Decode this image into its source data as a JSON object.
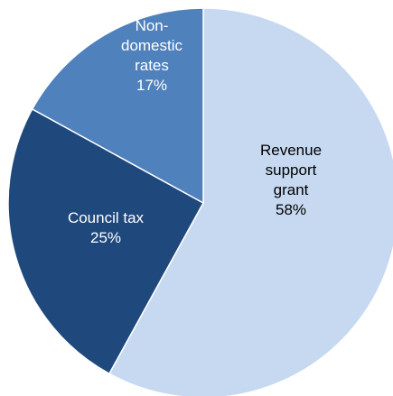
{
  "chart_data": {
    "type": "pie",
    "title": "",
    "slices": [
      {
        "lines": [
          "Revenue",
          "support",
          "grant"
        ],
        "value": 58,
        "value_label": "58%",
        "color": "#c6d9f1",
        "text_color": "#000000"
      },
      {
        "lines": [
          "Council tax"
        ],
        "value": 25,
        "value_label": "25%",
        "color": "#1f497d",
        "text_color": "#ffffff"
      },
      {
        "lines": [
          "Non-",
          "domestic",
          "rates"
        ],
        "value": 17,
        "value_label": "17%",
        "color": "#4f81bd",
        "text_color": "#ffffff"
      }
    ],
    "start_angle": "12 o'clock",
    "direction": "clockwise",
    "legend": "none",
    "border_color": "#ffffff"
  }
}
